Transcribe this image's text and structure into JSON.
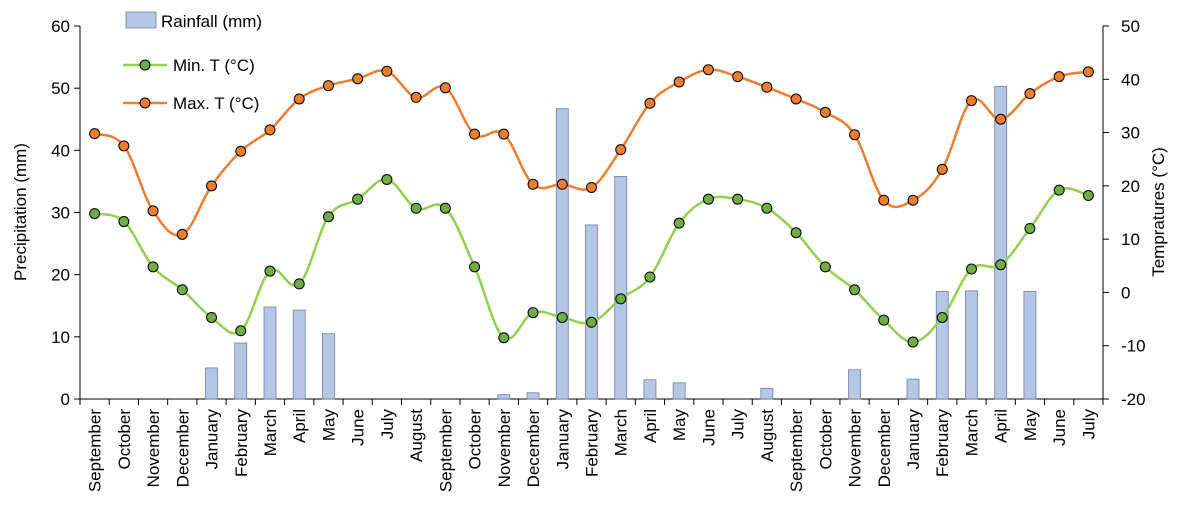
{
  "chart_data": {
    "type": "bar+line",
    "categories": [
      "September",
      "October",
      "November",
      "December",
      "January",
      "February",
      "March",
      "April",
      "May",
      "June",
      "July",
      "August",
      "September",
      "October",
      "November",
      "December",
      "January",
      "February",
      "March",
      "April",
      "May",
      "June",
      "July",
      "August",
      "September",
      "October",
      "November",
      "December",
      "January",
      "February",
      "March",
      "April",
      "May",
      "June",
      "July"
    ],
    "series": [
      {
        "name": "Rainfall (mm)",
        "type": "bar",
        "axis": "left",
        "color": "#b4c7e7",
        "values": [
          0,
          0,
          0,
          0,
          5,
          9,
          14.8,
          14.3,
          10.5,
          0,
          0,
          0,
          0,
          0,
          0.7,
          1,
          46.7,
          28,
          35.8,
          3.1,
          2.6,
          0,
          0,
          1.7,
          0,
          0,
          4.7,
          0,
          3.2,
          17.3,
          17.4,
          50.3,
          17.3,
          0,
          0
        ]
      },
      {
        "name": "Min. T (°C)",
        "type": "line",
        "axis": "right",
        "color": "#92d050",
        "marker_fill": "#70ad47",
        "values": [
          14.8,
          13.3,
          4.8,
          0.5,
          -4.7,
          -7.2,
          4.0,
          1.6,
          14.2,
          17.5,
          21.2,
          15.8,
          15.8,
          4.8,
          -8.5,
          -3.8,
          -4.7,
          -5.6,
          -1.2,
          2.9,
          13.0,
          17.5,
          17.5,
          15.8,
          11.2,
          4.8,
          0.5,
          -5.2,
          -9.3,
          -4.7,
          4.4,
          5.2,
          12.0,
          19.2,
          18.2
        ]
      },
      {
        "name": "Max. T (°C)",
        "type": "line",
        "axis": "right",
        "color": "#ed7d31",
        "marker_fill": "#ed7d31",
        "values": [
          29.8,
          27.5,
          15.3,
          10.9,
          20.0,
          26.5,
          30.5,
          36.3,
          38.8,
          40.1,
          41.5,
          36.6,
          38.4,
          29.7,
          29.7,
          20.3,
          20.3,
          19.7,
          26.8,
          35.5,
          39.5,
          41.8,
          40.5,
          38.5,
          36.3,
          33.8,
          29.6,
          17.3,
          17.3,
          23.1,
          36.0,
          32.5,
          37.3,
          40.5,
          41.4
        ]
      }
    ],
    "ylabel": "Precipitation (mm)",
    "y2label": "Tempratures (°C)",
    "ylim": [
      0,
      60
    ],
    "y2lim": [
      -20,
      50
    ],
    "yticks": [
      "0",
      "10",
      "20",
      "30",
      "40",
      "50",
      "60"
    ],
    "y2ticks": [
      "-20",
      "-10",
      "0",
      "10",
      "20",
      "30",
      "40",
      "50"
    ],
    "grid": false,
    "legend": "top-left"
  }
}
